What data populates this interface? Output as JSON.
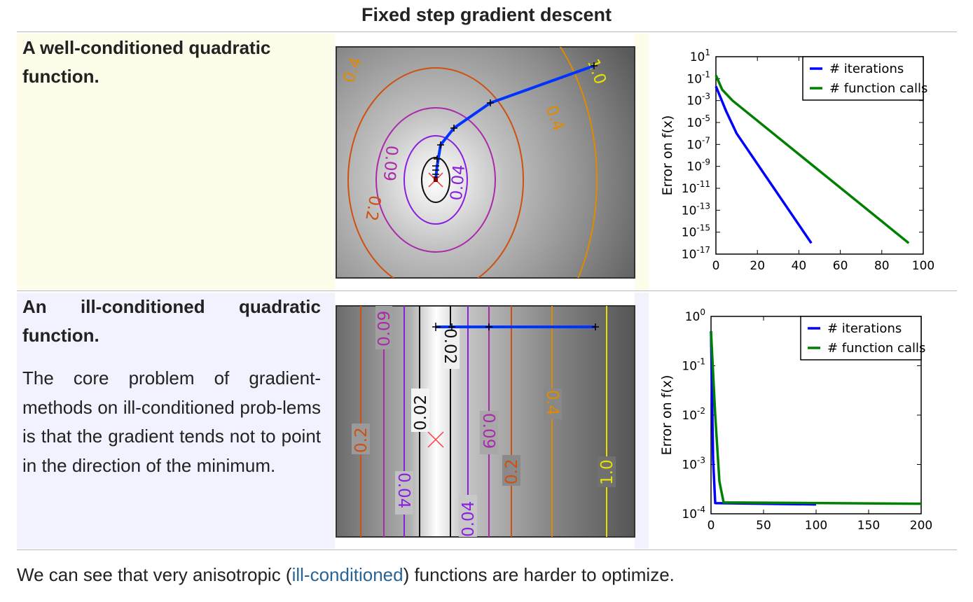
{
  "title": "Fixed step gradient descent",
  "rows": [
    {
      "heading": "A well-conditioned quadratic function.",
      "description": ""
    },
    {
      "heading": "An ill-conditioned quadratic function.",
      "description": "The core problem of gradient-methods on ill-conditioned prob-lems is that the gradient tends not to point in the direction of the minimum."
    }
  ],
  "footer": {
    "before": "We can see that very anisotropic (",
    "link": "ill-conditioned",
    "after": ") functions are harder to optimize."
  },
  "colors": {
    "iterations": "#0000ff",
    "function_calls": "#008000",
    "link": "#2a6496"
  },
  "contours": [
    {
      "contour_labels": [
        "0.4",
        "1.0",
        "0.4",
        "0.09",
        "0.2",
        "0.04"
      ]
    },
    {
      "contour_labels": [
        "0.09",
        "0.02",
        "0.02",
        "0.4",
        "0.2",
        "0.09",
        "0.04",
        "1.0",
        "0.2",
        "0.04"
      ]
    }
  ],
  "chart_data": [
    {
      "type": "line",
      "title": "",
      "xlabel": "",
      "ylabel": "Error on f(x)",
      "yscale": "log",
      "xlim": [
        0,
        100
      ],
      "ylim": [
        1e-17,
        10
      ],
      "xticks": [
        "0",
        "20",
        "40",
        "60",
        "80",
        "100"
      ],
      "yticks": [
        {
          "base": "10",
          "exp": "1"
        },
        {
          "base": "10",
          "exp": "-1"
        },
        {
          "base": "10",
          "exp": "-3"
        },
        {
          "base": "10",
          "exp": "-5"
        },
        {
          "base": "10",
          "exp": "-7"
        },
        {
          "base": "10",
          "exp": "-9"
        },
        {
          "base": "10",
          "exp": "-11"
        },
        {
          "base": "10",
          "exp": "-13"
        },
        {
          "base": "10",
          "exp": "-15"
        },
        {
          "base": "10",
          "exp": "-17"
        }
      ],
      "legend_position": "top-right",
      "series": [
        {
          "name": "# iterations",
          "color": "#0000ff",
          "x": [
            0,
            5,
            10,
            46
          ],
          "y": [
            0.02,
            0.0001,
            1e-06,
            1e-16
          ]
        },
        {
          "name": "# function calls",
          "color": "#008000",
          "x": [
            0,
            3,
            8,
            93
          ],
          "y": [
            0.2,
            0.01,
            0.001,
            1e-16
          ]
        }
      ]
    },
    {
      "type": "line",
      "title": "",
      "xlabel": "",
      "ylabel": "Error on f(x)",
      "yscale": "log",
      "xlim": [
        0,
        200
      ],
      "ylim": [
        0.0001,
        1
      ],
      "xticks": [
        "0",
        "50",
        "100",
        "150",
        "200"
      ],
      "yticks": [
        {
          "base": "10",
          "exp": "0"
        },
        {
          "base": "10",
          "exp": "-1"
        },
        {
          "base": "10",
          "exp": "-2"
        },
        {
          "base": "10",
          "exp": "-3"
        },
        {
          "base": "10",
          "exp": "-4"
        }
      ],
      "legend_position": "top-right",
      "series": [
        {
          "name": "# iterations",
          "color": "#0000ff",
          "x": [
            0,
            2,
            4,
            100
          ],
          "y": [
            0.5,
            0.00125,
            0.000165,
            0.000155
          ]
        },
        {
          "name": "# function calls",
          "color": "#008000",
          "x": [
            0,
            4,
            8,
            12,
            200
          ],
          "y": [
            0.5,
            0.01,
            0.00045,
            0.00017,
            0.00016
          ]
        }
      ]
    }
  ]
}
